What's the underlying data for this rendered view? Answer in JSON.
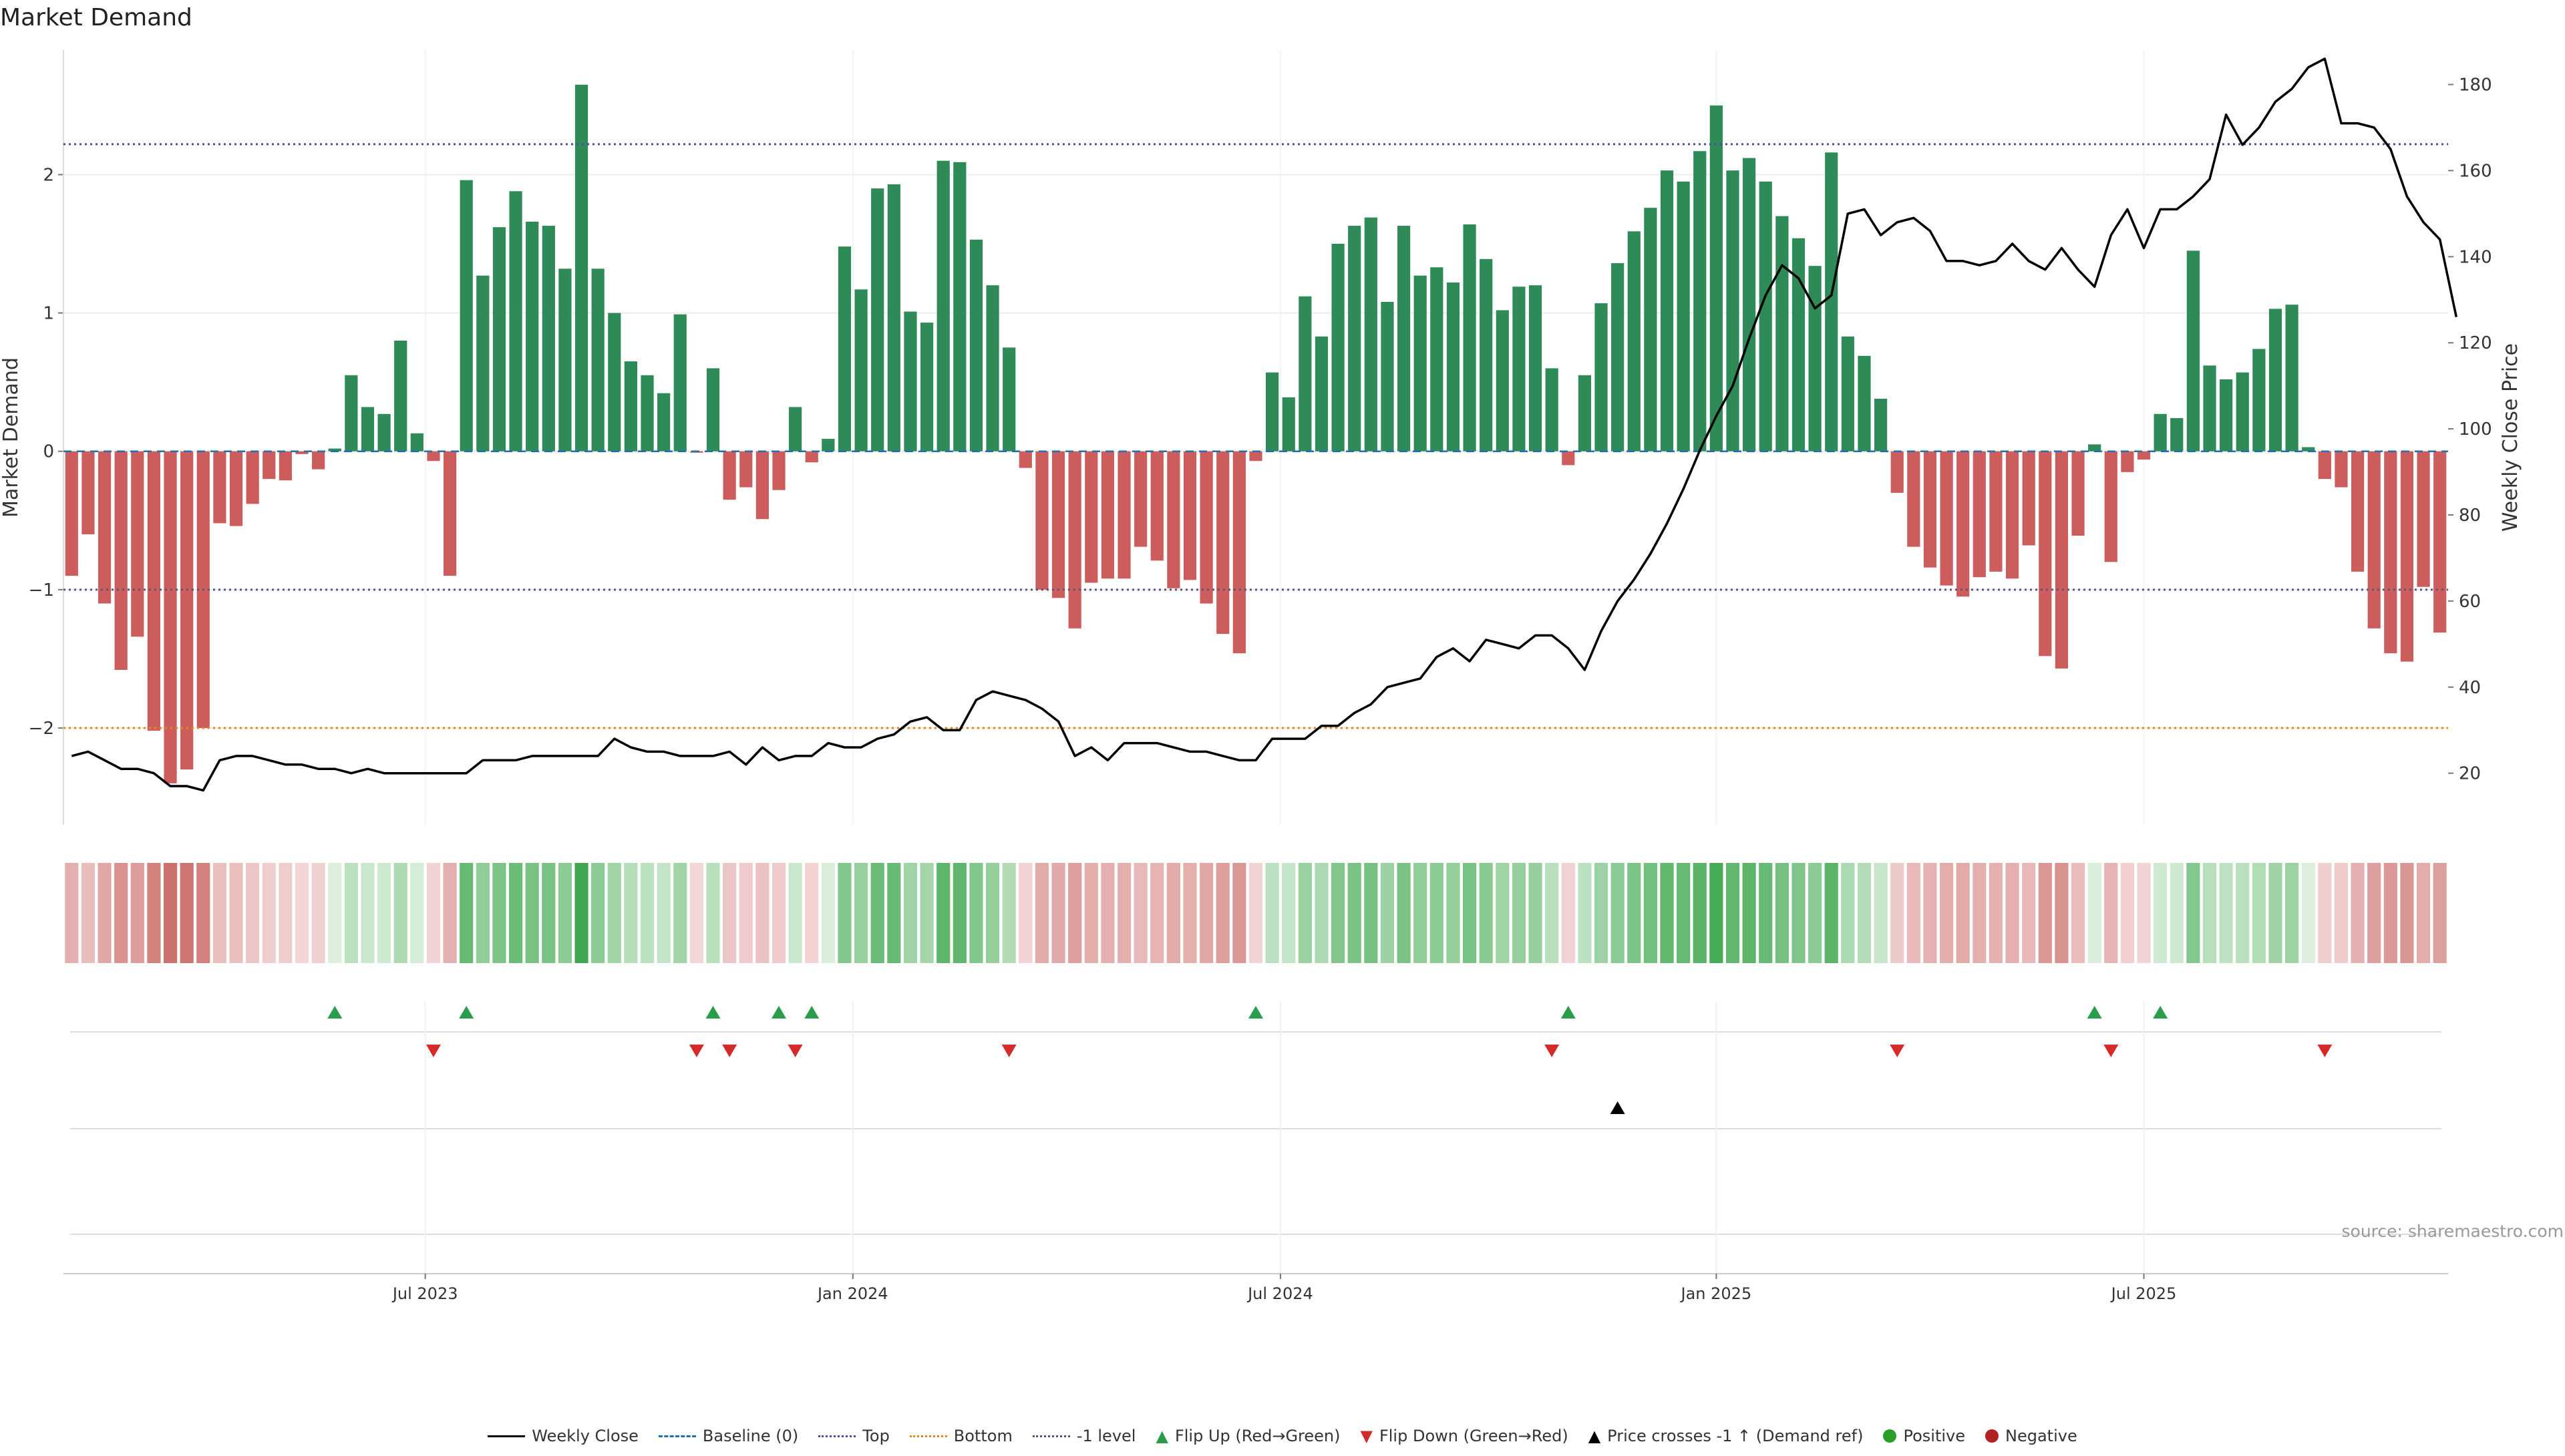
{
  "chart_data": {
    "type": "bar",
    "title": "Market Demand",
    "ylabel": "Market Demand",
    "y2label": "Weekly Close Price",
    "source": "source: sharemaestro.com",
    "ylim": [
      -2.7,
      2.9
    ],
    "y2lim": [
      8,
      188
    ],
    "yticks": [
      -2,
      -1,
      0,
      1,
      2
    ],
    "yticklabels": [
      "−2",
      "−1",
      "0",
      "1",
      "2"
    ],
    "y2ticks": [
      20,
      40,
      60,
      80,
      100,
      120,
      140,
      160,
      180
    ],
    "y2ticklabels": [
      "20",
      "40",
      "60",
      "80",
      "100",
      "120",
      "140",
      "160",
      "180"
    ],
    "xlim": [
      0,
      144
    ],
    "xticks": [
      22,
      48,
      74,
      100.5,
      126.5
    ],
    "xticklabels": [
      "Jul 2023",
      "Jan 2024",
      "Jul 2024",
      "Jan 2025",
      "Jul 2025"
    ],
    "reference_lines": {
      "top": 2.22,
      "bottom": -2.0,
      "minus_one": -1.0,
      "baseline": 0
    },
    "colors": {
      "positive": "#2e8b57",
      "negative": "#cd5c5c",
      "price": "#000000",
      "top": "#4b4baa",
      "bottom": "#e08a1e",
      "minus_one": "#555577",
      "flip_up": "#2a9d4a",
      "flip_down": "#d42a2a",
      "cross": "#000000",
      "positive_dot": "#2a9d2a",
      "negative_dot": "#b22222"
    },
    "demand": [
      -0.9,
      -0.6,
      -1.1,
      -1.58,
      -1.34,
      -2.02,
      -2.4,
      -2.3,
      -2.0,
      -0.52,
      -0.54,
      -0.38,
      -0.2,
      -0.21,
      -0.02,
      -0.13,
      0.02,
      0.55,
      0.32,
      0.27,
      0.8,
      0.13,
      -0.07,
      -0.9,
      1.96,
      1.27,
      1.62,
      1.88,
      1.66,
      1.63,
      1.32,
      2.65,
      1.32,
      1.0,
      0.65,
      0.55,
      0.42,
      0.99,
      -0.01,
      0.6,
      -0.35,
      -0.26,
      -0.49,
      -0.28,
      0.32,
      -0.08,
      0.09,
      1.48,
      1.17,
      1.9,
      1.93,
      1.01,
      0.93,
      2.1,
      2.09,
      1.53,
      1.2,
      0.75,
      -0.12,
      -1.0,
      -1.06,
      -1.28,
      -0.95,
      -0.92,
      -0.92,
      -0.69,
      -0.79,
      -0.99,
      -0.93,
      -1.1,
      -1.32,
      -1.46,
      -0.07,
      0.57,
      0.39,
      1.12,
      0.83,
      1.5,
      1.63,
      1.69,
      1.08,
      1.63,
      1.27,
      1.33,
      1.22,
      1.64,
      1.39,
      1.02,
      1.19,
      1.2,
      0.6,
      -0.1,
      0.55,
      1.07,
      1.36,
      1.59,
      1.76,
      2.03,
      1.95,
      2.17,
      2.5,
      2.03,
      2.12,
      1.95,
      1.7,
      1.54,
      1.34,
      2.16,
      0.83,
      0.69,
      0.38,
      -0.3,
      -0.69,
      -0.84,
      -0.97,
      -1.05,
      -0.91,
      -0.87,
      -0.92,
      -0.68,
      -1.48,
      -1.57,
      -0.61,
      0.05,
      -0.8,
      -0.15,
      -0.06,
      0.27,
      0.24,
      1.45,
      0.62,
      0.52,
      0.57,
      0.74,
      1.03,
      1.06,
      0.03,
      -0.2,
      -0.26,
      -0.87,
      -1.28,
      -1.46,
      -1.52,
      -0.98,
      -1.31
    ],
    "price": [
      24,
      25,
      23,
      21,
      21,
      20,
      17,
      17,
      16,
      23,
      24,
      24,
      23,
      22,
      22,
      21,
      21,
      20,
      21,
      20,
      20,
      20,
      20,
      20,
      20,
      23,
      23,
      23,
      24,
      24,
      24,
      24,
      24,
      28,
      26,
      25,
      25,
      24,
      24,
      24,
      25,
      22,
      26,
      23,
      24,
      24,
      27,
      26,
      26,
      28,
      29,
      32,
      33,
      30,
      30,
      37,
      39,
      38,
      37,
      35,
      32,
      24,
      26,
      23,
      27,
      27,
      27,
      26,
      25,
      25,
      24,
      23,
      23,
      28,
      28,
      28,
      31,
      31,
      34,
      36,
      40,
      41,
      42,
      47,
      49,
      46,
      51,
      50,
      49,
      52,
      52,
      49,
      44,
      53,
      60,
      65,
      71,
      78,
      86,
      95,
      103,
      110,
      121,
      131,
      138,
      135,
      128,
      131,
      150,
      151,
      145,
      148,
      149,
      146,
      139,
      139,
      138,
      139,
      143,
      139,
      137,
      142,
      137,
      133,
      145,
      151,
      142,
      151,
      151,
      154,
      158,
      173,
      166,
      170,
      176,
      179,
      184,
      186,
      171,
      171,
      170,
      165,
      154,
      148,
      144,
      126
    ],
    "flip_up": [
      16,
      24,
      39,
      43,
      45,
      72,
      91,
      123,
      127
    ],
    "flip_down": [
      22,
      38,
      40,
      44,
      57,
      90,
      111,
      124,
      137
    ],
    "price_cross": [
      94
    ],
    "legend": [
      {
        "label": "Weekly Close",
        "style": "line"
      },
      {
        "label": "Baseline (0)",
        "style": "dash-blue"
      },
      {
        "label": "Top",
        "style": "dot-top"
      },
      {
        "label": "Bottom",
        "style": "dot-bottom"
      },
      {
        "label": "-1 level",
        "style": "dot-minus"
      },
      {
        "label": "Flip Up (Red→Green)",
        "style": "tri-up"
      },
      {
        "label": "Flip Down (Green→Red)",
        "style": "tri-down"
      },
      {
        "label": "Price crosses -1 ↑ (Demand ref)",
        "style": "tri-cross"
      },
      {
        "label": "Positive",
        "style": "dot-pos"
      },
      {
        "label": "Negative",
        "style": "dot-neg"
      }
    ]
  }
}
